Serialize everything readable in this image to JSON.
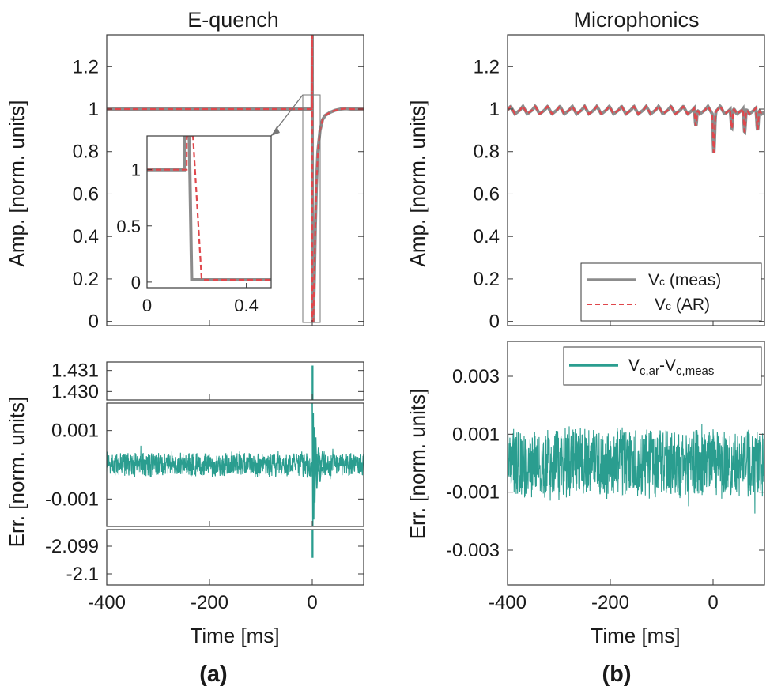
{
  "figure": {
    "panel_a_title": "E-quench",
    "panel_b_title": "Microphonics",
    "panel_a_label": "(a)",
    "panel_b_label": "(b)",
    "amp_ylabel": "Amp. [norm. units]",
    "err_ylabel": "Err. [norm. units]",
    "xlabel": "Time [ms]"
  },
  "colors": {
    "measured": "#8c8c8c",
    "ar": "#e0474c",
    "error": "#2a9d8f"
  },
  "chart_data": [
    {
      "id": "equench-amp",
      "type": "line",
      "title": "E-quench",
      "xlabel": "",
      "ylabel": "Amp. [norm. units]",
      "xlim": [
        -400,
        100
      ],
      "ylim": [
        -0.02,
        1.35
      ],
      "yticks": [
        0,
        0.2,
        0.4,
        0.6,
        0.8,
        1,
        1.2
      ],
      "ytick_labels": [
        "0",
        "0.2",
        "0.4",
        "0.6",
        "0.8",
        "1",
        "1.2"
      ],
      "series": [
        {
          "name": "Vc (meas)",
          "style": "solid-gray",
          "x": [
            -400,
            -0.5,
            0,
            0.2,
            0.9,
            2,
            4,
            6,
            8,
            11,
            15,
            20,
            25,
            35,
            45,
            55,
            65,
            75,
            85,
            100
          ],
          "y": [
            1,
            1,
            1.35,
            0.0,
            0.0,
            0.0,
            0.2,
            0.45,
            0.64,
            0.8,
            0.9,
            0.95,
            0.97,
            0.985,
            0.995,
            1.0,
            1.002,
            1.0,
            1.0,
            1.0
          ]
        },
        {
          "name": "Vc (AR)",
          "style": "dashed-red",
          "x": [
            -400,
            -0.5,
            0,
            0.2,
            0.9,
            2,
            4,
            6,
            8,
            11,
            15,
            20,
            25,
            35,
            45,
            55,
            65,
            75,
            85,
            100
          ],
          "y": [
            1,
            1,
            1.35,
            0.0,
            0.0,
            0.0,
            0.2,
            0.45,
            0.64,
            0.8,
            0.9,
            0.95,
            0.97,
            0.985,
            0.995,
            1.0,
            1.002,
            1.0,
            1.0,
            1.0
          ]
        }
      ],
      "annotation": "zoom box around t = 0 linked to inset"
    },
    {
      "id": "equench-inset",
      "type": "line",
      "xlim": [
        0,
        0.5
      ],
      "ylim": [
        -0.05,
        1.3
      ],
      "xticks": [
        0,
        0.4
      ],
      "xtick_labels": [
        "0",
        "0.4"
      ],
      "yticks": [
        0,
        0.5,
        1
      ],
      "ytick_labels": [
        "0",
        "0.5",
        "1"
      ],
      "series": [
        {
          "name": "Vc (meas)",
          "style": "solid-gray",
          "x": [
            0,
            0.15,
            0.15,
            0.17,
            0.18,
            0.5
          ],
          "y": [
            1,
            1,
            1.3,
            1.3,
            0.02,
            0.02
          ]
        },
        {
          "name": "Vc (AR)",
          "style": "dashed-red",
          "x": [
            0,
            0.16,
            0.16,
            0.185,
            0.22,
            0.5
          ],
          "y": [
            1,
            1,
            1.3,
            1.3,
            0.02,
            0.02
          ]
        }
      ]
    },
    {
      "id": "equench-err-top",
      "type": "line",
      "xlim": [
        -400,
        100
      ],
      "ylim": [
        1.4296,
        1.4314
      ],
      "yticks": [
        1.43,
        1.431
      ],
      "ytick_labels": [
        "1.430",
        "1.431"
      ],
      "series": [
        {
          "name": "spike",
          "style": "solid-teal",
          "x": [
            0,
            0,
            1.0,
            1.0
          ],
          "y": [
            1.4296,
            1.4312,
            1.4312,
            1.4296
          ]
        }
      ]
    },
    {
      "id": "equench-err-mid",
      "type": "line",
      "xlim": [
        -400,
        100
      ],
      "ylim": [
        -0.0018,
        0.0018
      ],
      "yticks": [
        0.001,
        -0.001
      ],
      "ytick_labels": [
        "0.001",
        "-0.001"
      ],
      "noise": {
        "x_start": -400,
        "x_end": 100,
        "amplitude": 0.00036,
        "seed": 7
      },
      "series": [
        {
          "name": "Vc,ar-Vc,meas",
          "style": "solid-teal",
          "x": [
            0,
            1,
            2,
            3,
            4,
            5,
            7,
            9,
            12,
            15,
            20,
            25
          ],
          "y": [
            0.0018,
            -0.0018,
            0.0015,
            -0.0016,
            0.0011,
            -0.0011,
            0.0008,
            -0.0007,
            0.0005,
            -0.0005,
            0.0004,
            -0.0003
          ]
        }
      ]
    },
    {
      "id": "equench-err-bot",
      "type": "line",
      "xlim": [
        -400,
        100
      ],
      "ylim": [
        -2.1004,
        -2.0984
      ],
      "yticks": [
        -2.099,
        -2.1
      ],
      "ytick_labels": [
        "-2.099",
        "-2.1"
      ],
      "xticks": [
        -400,
        -200,
        0
      ],
      "xtick_labels": [
        "-400",
        "-200",
        "0"
      ],
      "xlabel": "Time [ms]",
      "series": [
        {
          "name": "spike",
          "style": "solid-teal",
          "x": [
            0,
            0,
            1.0,
            1.0
          ],
          "y": [
            -2.0984,
            -2.0994,
            -2.0994,
            -2.0984
          ]
        }
      ]
    },
    {
      "id": "microphonics-amp",
      "type": "line",
      "title": "Microphonics",
      "ylabel": "Amp. [norm. units]",
      "xlim": [
        -400,
        100
      ],
      "ylim": [
        -0.02,
        1.35
      ],
      "yticks": [
        0,
        0.2,
        0.4,
        0.6,
        0.8,
        1,
        1.2
      ],
      "ytick_labels": [
        "0",
        "0.2",
        "0.4",
        "0.6",
        "0.8",
        "1",
        "1.2"
      ],
      "oscillation": {
        "period": 24,
        "amplitude": 0.018,
        "baseline": 0.995
      },
      "dips": [
        {
          "t": -35,
          "depth": 0.09
        },
        {
          "t": 0,
          "depth": 0.19
        },
        {
          "t": 35,
          "depth": 0.1
        },
        {
          "t": 60,
          "depth": 0.12
        },
        {
          "t": 85,
          "depth": 0.11
        }
      ],
      "series": [
        {
          "name": "Vc (meas)",
          "style": "solid-gray"
        },
        {
          "name": "Vc (AR)",
          "style": "dashed-red"
        }
      ],
      "legend": {
        "location": "bottom-right",
        "entries": [
          "Vc (meas)",
          "Vc (AR)"
        ]
      }
    },
    {
      "id": "microphonics-err",
      "type": "line",
      "ylabel": "Err. [norm. units]",
      "xlabel": "Time [ms]",
      "xlim": [
        -400,
        100
      ],
      "ylim": [
        -0.0042,
        0.0042
      ],
      "yticks": [
        0.003,
        0.001,
        -0.001,
        -0.003
      ],
      "ytick_labels": [
        "0.003",
        "0.001",
        "-0.001",
        "-0.003"
      ],
      "xticks": [
        -400,
        -200,
        0
      ],
      "xtick_labels": [
        "-400",
        "-200",
        "0"
      ],
      "noise": {
        "x_start": -400,
        "x_end": 100,
        "amplitude": 0.0012,
        "seed": 13
      },
      "series": [
        {
          "name": "Vc,ar-Vc,meas",
          "style": "solid-teal"
        }
      ],
      "legend": {
        "location": "top-right",
        "entries": [
          "Vc,ar-Vc,meas"
        ]
      }
    }
  ],
  "legend": {
    "amp_meas_label": "Vc (meas)",
    "amp_ar_label": "Vc (AR)",
    "err_label": "Vc,ar-Vc,meas",
    "meas_main": "V",
    "meas_sub": "c",
    "meas_suffix": " (meas)",
    "ar_main": "V",
    "ar_sub": "c",
    "ar_suffix": " (AR)",
    "err_main_1": "V",
    "err_sub_1": "c,ar",
    "err_dash": "-",
    "err_main_2": "V",
    "err_sub_2": "c,meas"
  }
}
